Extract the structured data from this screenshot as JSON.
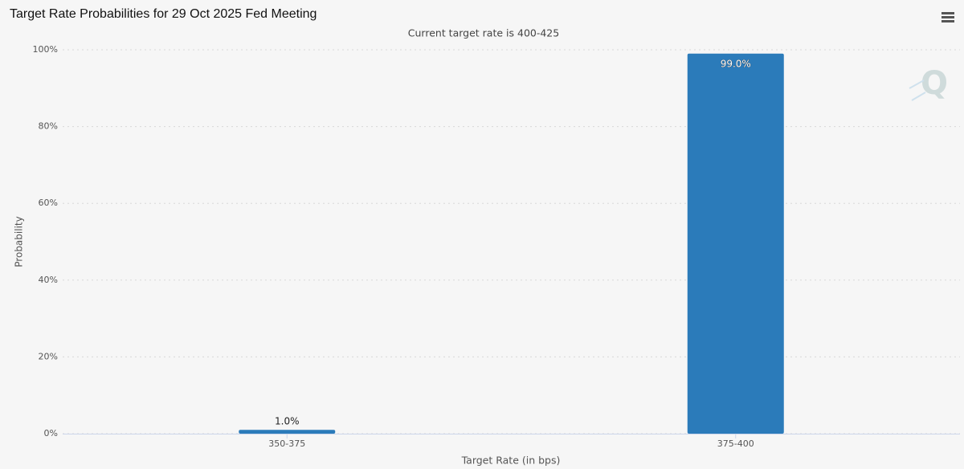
{
  "chart_data": {
    "type": "bar",
    "title": "Target Rate Probabilities for 29 Oct 2025 Fed Meeting",
    "subtitle": "Current target rate is 400-425",
    "x_label": "Target Rate (in bps)",
    "y_label": "Probability",
    "categories": [
      "350-375",
      "375-400"
    ],
    "values": [
      1.0,
      99.0
    ],
    "value_labels": [
      "1.0%",
      "99.0%"
    ],
    "color": "#2b7bba",
    "ylim": [
      0,
      100
    ],
    "yticks": [
      {
        "value": 0,
        "label": "0%"
      },
      {
        "value": 20,
        "label": "20%"
      },
      {
        "value": 40,
        "label": "40%"
      },
      {
        "value": 60,
        "label": "60%"
      },
      {
        "value": 80,
        "label": "80%"
      },
      {
        "value": 100,
        "label": "100%"
      }
    ],
    "grid": true
  }
}
